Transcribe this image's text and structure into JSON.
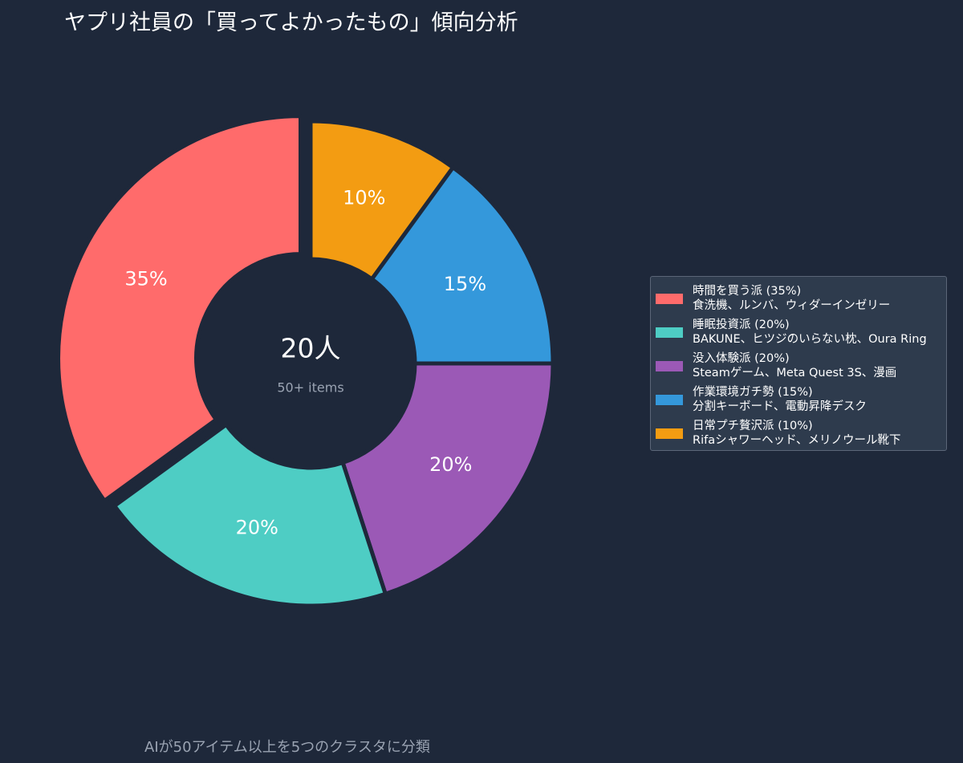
{
  "chart_data": {
    "type": "pie",
    "title": "ヤプリ社員の「買ってよかったもの」傾向分析",
    "center_value": "20人",
    "center_subtitle": "50+ items",
    "footer_note": "AIが50アイテム以上を5つのクラスタに分類",
    "legend_placement": "right",
    "start_angle_deg": 90,
    "direction": "clockwise",
    "slices": [
      {
        "label": "日常プチ贅沢派 (10%)",
        "value": 10,
        "display": "10%",
        "examples": "Rifaシャワーヘッド、メリノウール靴下",
        "color": "#f39c12"
      },
      {
        "label": "作業環境ガチ勢 (15%)",
        "value": 15,
        "display": "15%",
        "examples": "分割キーボード、電動昇降デスク",
        "color": "#3498db"
      },
      {
        "label": "没入体験派 (20%)",
        "value": 20,
        "display": "20%",
        "examples": "Steamゲーム、Meta Quest 3S、漫画",
        "color": "#9b59b6"
      },
      {
        "label": "睡眠投資派 (20%)",
        "value": 20,
        "display": "20%",
        "examples": "BAKUNE、ヒツジのいらない枕、Oura Ring",
        "color": "#4ecdc4"
      },
      {
        "label": "時間を買う派 (35%)",
        "value": 35,
        "display": "35%",
        "examples": "食洗機、ルンバ、ウィダーインゼリー",
        "color": "#ff6b6b",
        "exploded": true
      }
    ]
  },
  "legend": {
    "items": [
      {
        "label": "時間を買う派 (35%)",
        "examples": "食洗機、ルンバ、ウィダーインゼリー",
        "color": "#ff6b6b"
      },
      {
        "label": "睡眠投資派 (20%)",
        "examples": "BAKUNE、ヒツジのいらない枕、Oura Ring",
        "color": "#4ecdc4"
      },
      {
        "label": "没入体験派 (20%)",
        "examples": "Steamゲーム、Meta Quest 3S、漫画",
        "color": "#9b59b6"
      },
      {
        "label": "作業環境ガチ勢 (15%)",
        "examples": "分割キーボード、電動昇降デスク",
        "color": "#3498db"
      },
      {
        "label": "日常プチ贅沢派 (10%)",
        "examples": "Rifaシャワーヘッド、メリノウール靴下",
        "color": "#f39c12"
      }
    ]
  },
  "colors": {
    "background": "#1e283a",
    "legend_background": "#2e3b4d",
    "muted_text": "#9aa3b2"
  }
}
